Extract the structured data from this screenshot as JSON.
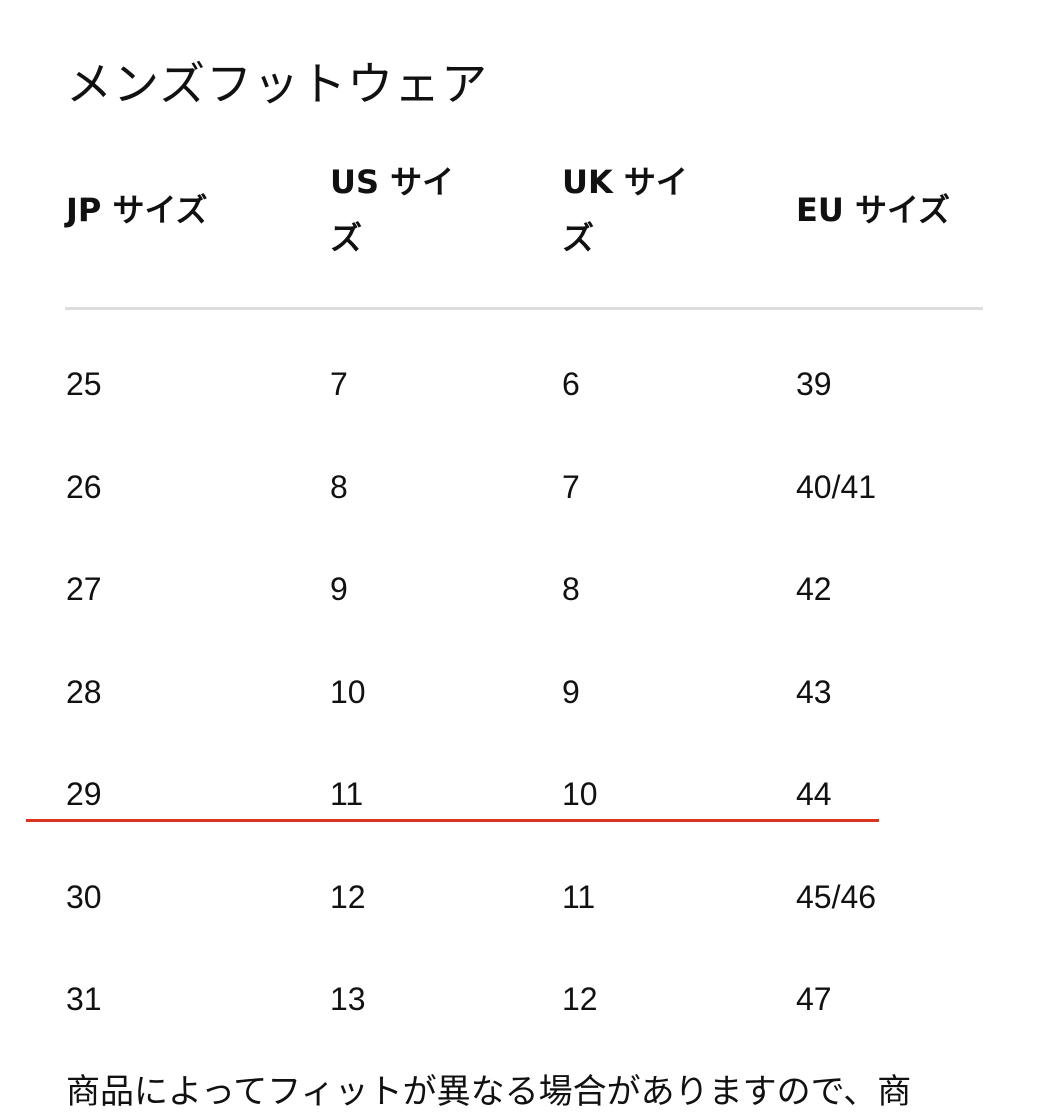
{
  "title": "メンズフットウェア",
  "headers": [
    "JP サイズ",
    "US サイ\nズ",
    "UK サイ\nズ",
    "EU サイズ"
  ],
  "rows": [
    [
      "25",
      "7",
      "6",
      "39"
    ],
    [
      "26",
      "8",
      "7",
      "40/41"
    ],
    [
      "27",
      "9",
      "8",
      "42"
    ],
    [
      "28",
      "10",
      "9",
      "43"
    ],
    [
      "29",
      "11",
      "10",
      "44"
    ],
    [
      "30",
      "12",
      "11",
      "45/46"
    ],
    [
      "31",
      "13",
      "12",
      "47"
    ]
  ],
  "highlight_color": "#d9341e",
  "note": "商品によってフィットが異なる場合がありますので、商"
}
